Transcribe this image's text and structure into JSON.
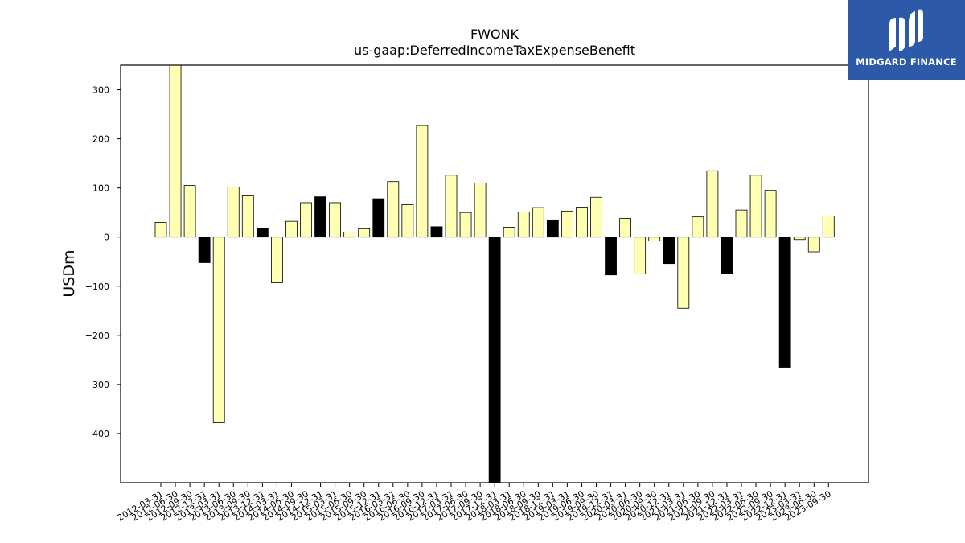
{
  "chart_data": {
    "type": "bar",
    "title": "FWONK",
    "subtitle": "us-gaap:DeferredIncomeTaxExpenseBenefit",
    "ylabel": "USDm",
    "xlabel": "",
    "ylim": [
      -500,
      350
    ],
    "yticks": [
      300,
      200,
      100,
      0,
      -100,
      -200,
      -300,
      -400
    ],
    "grid": false,
    "colors": {
      "positive": "#ffffb3",
      "negative": "#ffffb3",
      "highlight": "#000000",
      "edge": "#000000"
    },
    "categories": [
      "2012-03-31",
      "2012-06-30",
      "2012-09-30",
      "2012-12-31",
      "2013-03-31",
      "2013-06-30",
      "2013-09-30",
      "2013-12-31",
      "2014-03-31",
      "2014-06-30",
      "2014-09-30",
      "2014-12-31",
      "2015-03-31",
      "2015-06-30",
      "2015-09-30",
      "2015-12-31",
      "2016-03-31",
      "2016-06-30",
      "2016-09-30",
      "2016-12-31",
      "2017-03-31",
      "2017-06-30",
      "2017-09-30",
      "2017-12-31",
      "2018-03-31",
      "2018-06-30",
      "2018-09-30",
      "2018-12-31",
      "2019-03-31",
      "2019-06-30",
      "2019-09-30",
      "2019-12-31",
      "2020-03-31",
      "2020-06-30",
      "2020-09-30",
      "2020-12-31",
      "2021-03-31",
      "2021-06-30",
      "2021-09-30",
      "2021-12-31",
      "2022-03-31",
      "2022-06-30",
      "2022-09-30",
      "2022-12-31",
      "2023-03-31",
      "2023-06-30",
      "2023-09-30"
    ],
    "values": [
      30,
      350,
      105,
      -52,
      -378,
      102,
      84,
      17,
      -93,
      32,
      70,
      82,
      70,
      10,
      17,
      78,
      113,
      66,
      227,
      21,
      126,
      50,
      110,
      -500,
      20,
      51,
      60,
      35,
      53,
      61,
      81,
      -77,
      38,
      -75,
      -8,
      -54,
      -145,
      41,
      135,
      -75,
      55,
      126,
      95,
      -265,
      -5,
      -30,
      43
    ],
    "highlighted": [
      false,
      false,
      false,
      true,
      false,
      false,
      false,
      true,
      false,
      false,
      false,
      true,
      false,
      false,
      false,
      true,
      false,
      false,
      false,
      true,
      false,
      false,
      false,
      true,
      false,
      false,
      false,
      true,
      false,
      false,
      false,
      true,
      false,
      false,
      false,
      true,
      false,
      false,
      false,
      true,
      false,
      false,
      false,
      true,
      false,
      false,
      false
    ]
  },
  "logo": {
    "text": "MIDGARD FINANCE",
    "icon": "midgard-logo-icon",
    "background": "#2c5aa8"
  }
}
